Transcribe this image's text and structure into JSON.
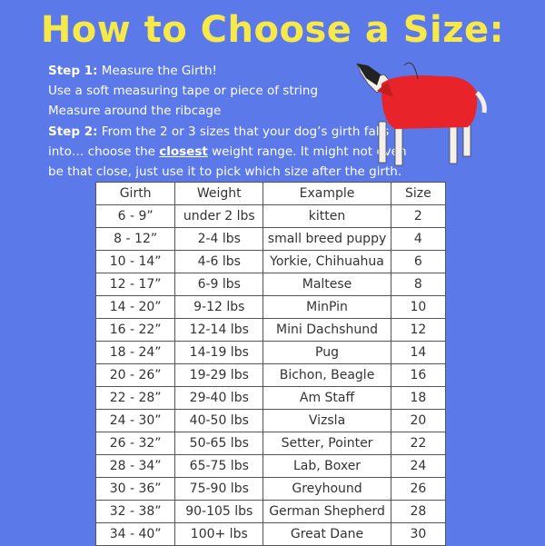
{
  "title": "How to Choose a Size:",
  "step1": {
    "label": "Step 1:",
    "text": "Measure the Girth!",
    "line2": "Use a soft measuring tape or piece of string",
    "line3": "Measure around the ribcage"
  },
  "step2": {
    "label": "Step 2:",
    "text": "From the 2 or 3 sizes that your dog’s girth falls",
    "line2_before": "into… choose the",
    "emphasis": "closest",
    "line2_after": "weight range. It might not even",
    "line3": "be that close, just use it to pick which size after the girth."
  },
  "table": {
    "header": [
      "Girth",
      "Weight",
      "Example",
      "Size"
    ],
    "rows": [
      [
        "6 - 9”",
        "under 2 lbs",
        "kitten",
        "2"
      ],
      [
        "8 - 12”",
        "2-4 lbs",
        "small breed puppy",
        "4"
      ],
      [
        "10 - 14”",
        "4-6 lbs",
        "Yorkie, Chihuahua",
        "6"
      ],
      [
        "12 - 17”",
        "6-9 lbs",
        "Maltese",
        "8"
      ],
      [
        "14 - 20”",
        "9-12 lbs",
        "MinPin",
        "10"
      ],
      [
        "16 - 22”",
        "12-14 lbs",
        "Mini Dachshund",
        "12"
      ],
      [
        "18 - 24”",
        "14-19 lbs",
        "Pug",
        "14"
      ],
      [
        "20 - 26”",
        "19-29 lbs",
        "Bichon, Beagle",
        "16"
      ],
      [
        "22 - 28”",
        "29-40 lbs",
        "Am Staff",
        "18"
      ],
      [
        "24 - 30”",
        "40-50 lbs",
        "Vizsla",
        "20"
      ],
      [
        "26 - 32”",
        "50-65 lbs",
        "Setter, Pointer",
        "22"
      ],
      [
        "28 - 34”",
        "65-75 lbs",
        "Lab, Boxer",
        "24"
      ],
      [
        "30 - 36”",
        "75-90 lbs",
        "Greyhound",
        "26"
      ],
      [
        "32 - 38”",
        "90-105 lbs",
        "German Shepherd",
        "28"
      ],
      [
        "34 - 40”",
        "100+ lbs",
        "Great Dane",
        "30"
      ]
    ]
  }
}
